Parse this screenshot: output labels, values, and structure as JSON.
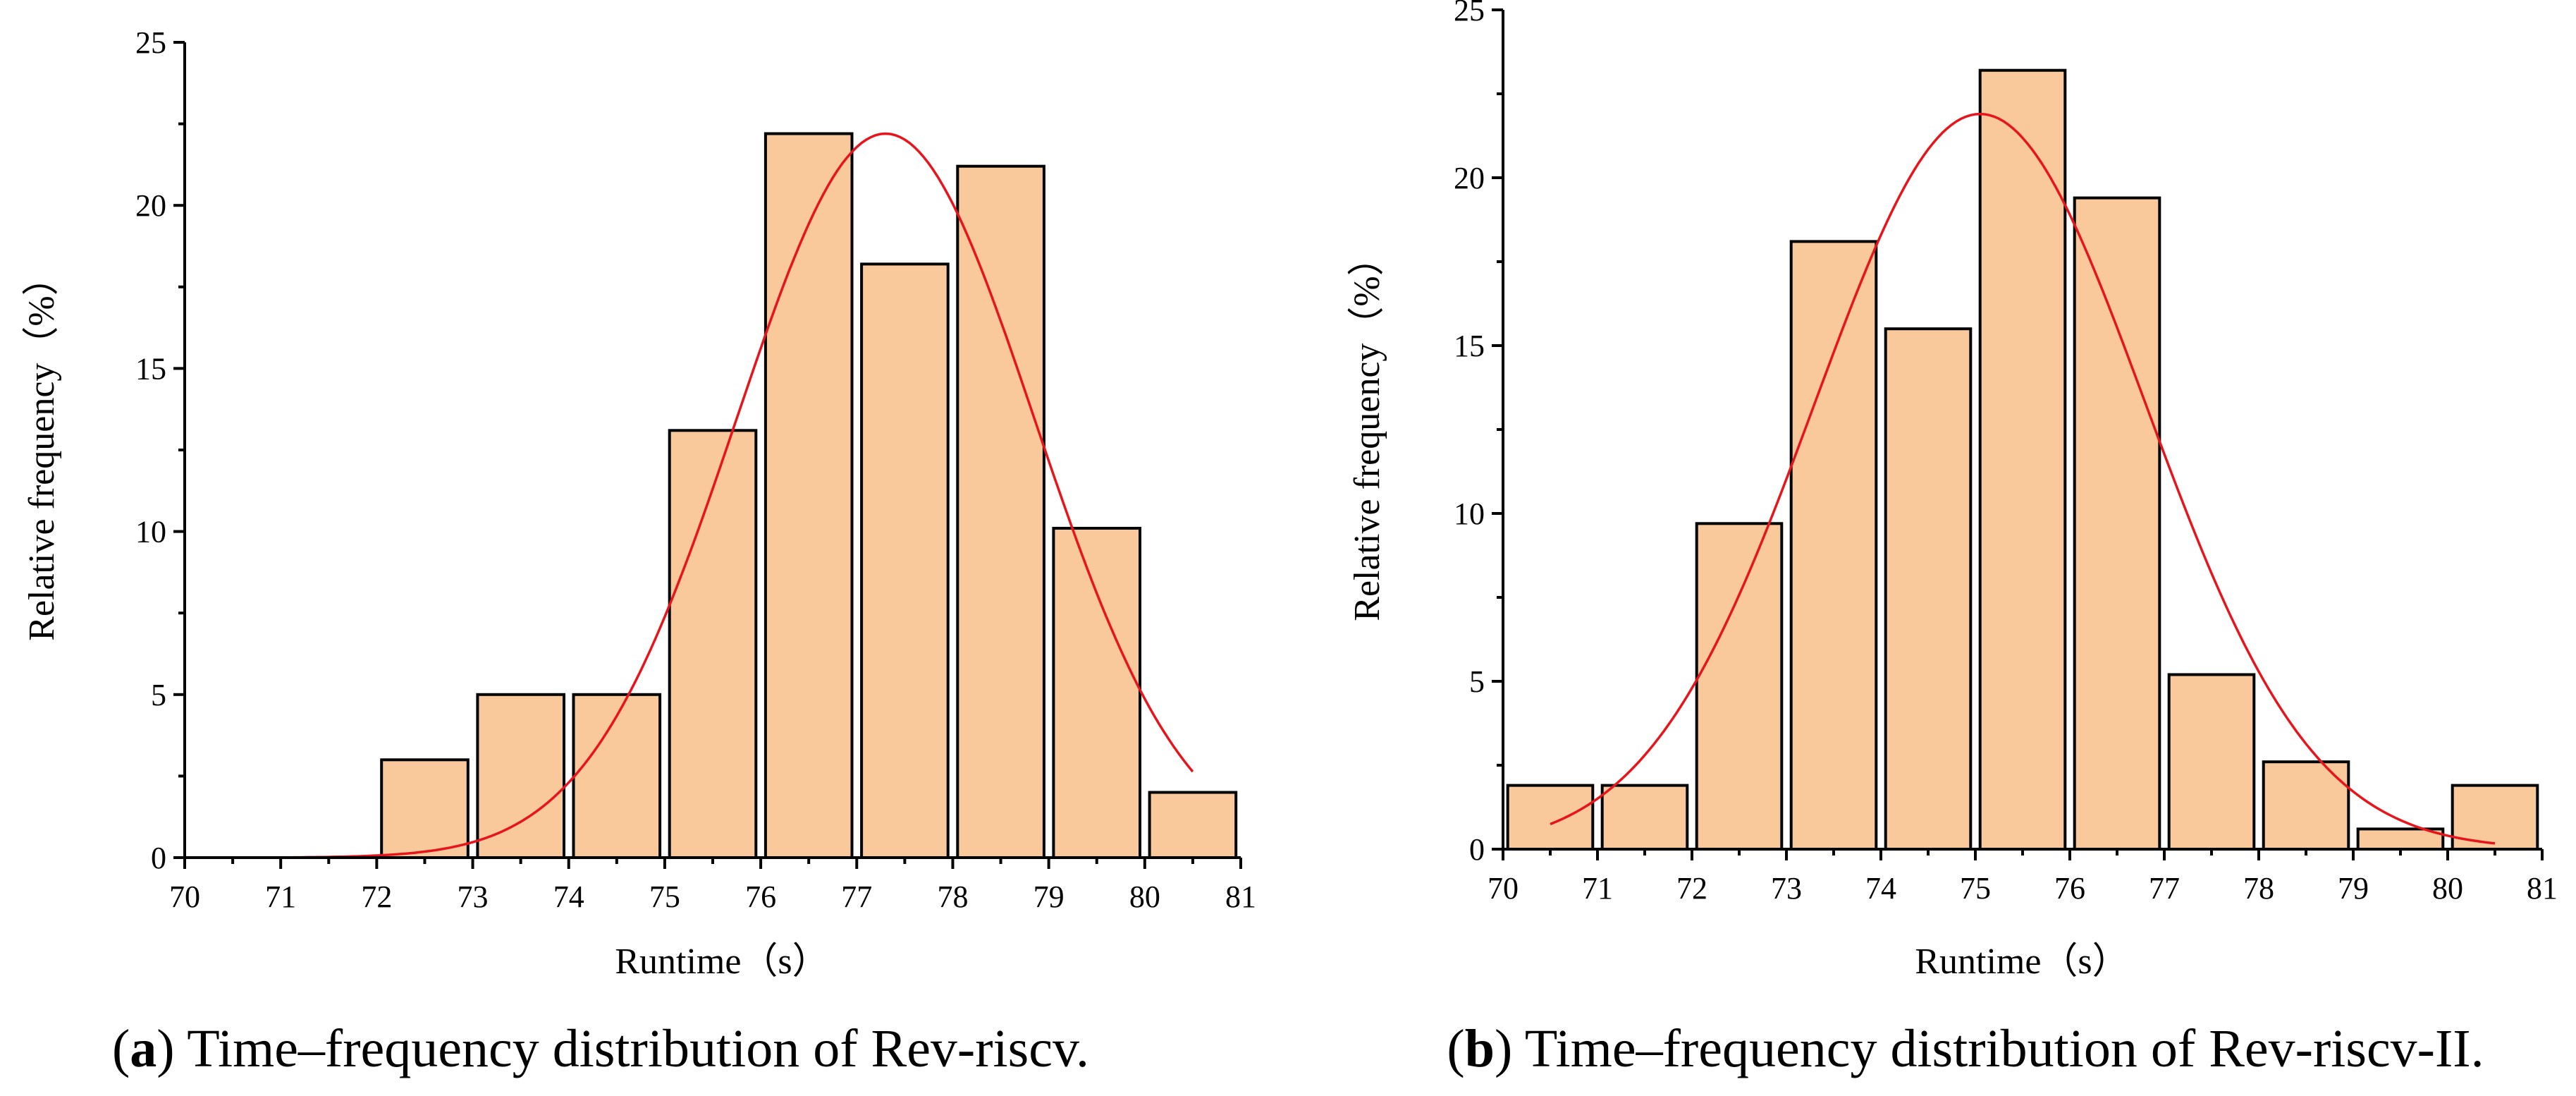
{
  "figure": {
    "panels": [
      {
        "id": "a",
        "caption_label": "a",
        "caption_text": " Time–frequency distribution of Rev-riscv."
      },
      {
        "id": "b",
        "caption_label": "b",
        "caption_text": " Time–frequency distribution of Rev-riscv-II."
      }
    ]
  },
  "colors": {
    "bar_fill": "#f9c89b",
    "bar_edge": "#000000",
    "fit_curve": "#e8141b"
  },
  "chart_data": [
    {
      "type": "bar",
      "title": "",
      "xlabel": "Runtime（s）",
      "ylabel": "Relative frequency（%）",
      "xlim": [
        70,
        81
      ],
      "ylim": [
        0,
        25
      ],
      "xticks": [
        70,
        71,
        72,
        73,
        74,
        75,
        76,
        77,
        78,
        79,
        80,
        81
      ],
      "yticks": [
        0,
        5,
        10,
        15,
        20,
        25
      ],
      "bins": [
        {
          "start": 72,
          "end": 73,
          "value": 3.0
        },
        {
          "start": 73,
          "end": 74,
          "value": 5.0
        },
        {
          "start": 74,
          "end": 75,
          "value": 5.0
        },
        {
          "start": 75,
          "end": 76,
          "value": 13.1
        },
        {
          "start": 76,
          "end": 77,
          "value": 22.2
        },
        {
          "start": 77,
          "end": 78,
          "value": 18.2
        },
        {
          "start": 78,
          "end": 79,
          "value": 21.2
        },
        {
          "start": 79,
          "end": 80,
          "value": 10.1
        },
        {
          "start": 80,
          "end": 81,
          "value": 2.0
        }
      ],
      "fit": {
        "type": "normal",
        "peak_x": 77.3,
        "peak_y": 22.2,
        "sigma": 1.55,
        "x_range": [
          70.5,
          80.5
        ]
      }
    },
    {
      "type": "bar",
      "title": "",
      "xlabel": "Runtime（s）",
      "ylabel": "Relative frequency（%）",
      "xlim": [
        70,
        81
      ],
      "ylim": [
        0,
        25
      ],
      "xticks": [
        70,
        71,
        72,
        73,
        74,
        75,
        76,
        77,
        78,
        79,
        80,
        81
      ],
      "yticks": [
        0,
        5,
        10,
        15,
        20,
        25
      ],
      "bins": [
        {
          "start": 70,
          "end": 71,
          "value": 1.9
        },
        {
          "start": 71,
          "end": 72,
          "value": 1.9
        },
        {
          "start": 72,
          "end": 73,
          "value": 9.7
        },
        {
          "start": 73,
          "end": 74,
          "value": 18.1
        },
        {
          "start": 74,
          "end": 75,
          "value": 15.5
        },
        {
          "start": 75,
          "end": 76,
          "value": 23.2
        },
        {
          "start": 76,
          "end": 77,
          "value": 19.4
        },
        {
          "start": 77,
          "end": 78,
          "value": 5.2
        },
        {
          "start": 78,
          "end": 79,
          "value": 2.6
        },
        {
          "start": 79,
          "end": 80,
          "value": 0.6
        },
        {
          "start": 80,
          "end": 81,
          "value": 1.9
        }
      ],
      "fit": {
        "type": "normal",
        "peak_x": 75.05,
        "peak_y": 21.9,
        "sigma": 1.75,
        "x_range": [
          70.5,
          80.5
        ]
      }
    }
  ]
}
